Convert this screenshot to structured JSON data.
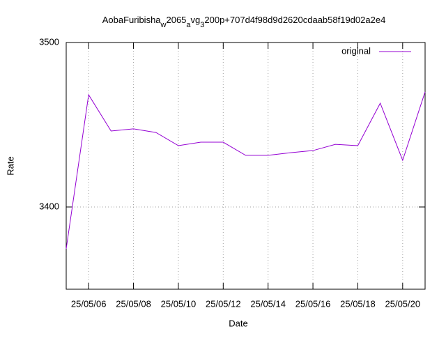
{
  "chart_data": {
    "type": "line",
    "title_parts": [
      {
        "text": "AobaFuribisha"
      },
      {
        "text": "w",
        "sub": true
      },
      {
        "text": "2065"
      },
      {
        "text": "a",
        "sub": true
      },
      {
        "text": "vg"
      },
      {
        "text": "3",
        "sub": true
      },
      {
        "text": "200p+707d4f98d9d2620cdaab58f19d02a2e4"
      }
    ],
    "xlabel": "Date",
    "ylabel": "Rate",
    "x": [
      "25/05/05",
      "25/05/06",
      "25/05/07",
      "25/05/08",
      "25/05/09",
      "25/05/10",
      "25/05/11",
      "25/05/12",
      "25/05/13",
      "25/05/14",
      "25/05/15",
      "25/05/16",
      "25/05/17",
      "25/05/18",
      "25/05/19",
      "25/05/20",
      "25/05/21"
    ],
    "series": [
      {
        "name": "original",
        "color": "#9400d3",
        "values": [
          3374.6,
          3468.2,
          3446.2,
          3447.5,
          3445.3,
          3437.3,
          3439.4,
          3439.4,
          3431.4,
          3431.4,
          3433,
          3434.3,
          3438.1,
          3437.3,
          3463.1,
          3428.4,
          3470
        ]
      }
    ],
    "xlim": [
      "25/05/05",
      "25/05/21"
    ],
    "xticks": [
      "25/05/06",
      "25/05/08",
      "25/05/10",
      "25/05/12",
      "25/05/14",
      "25/05/16",
      "25/05/18",
      "25/05/20"
    ],
    "ylim": [
      3350,
      3500
    ],
    "yticks": [
      3400,
      3500
    ],
    "grid": true,
    "legend": "top-right"
  }
}
